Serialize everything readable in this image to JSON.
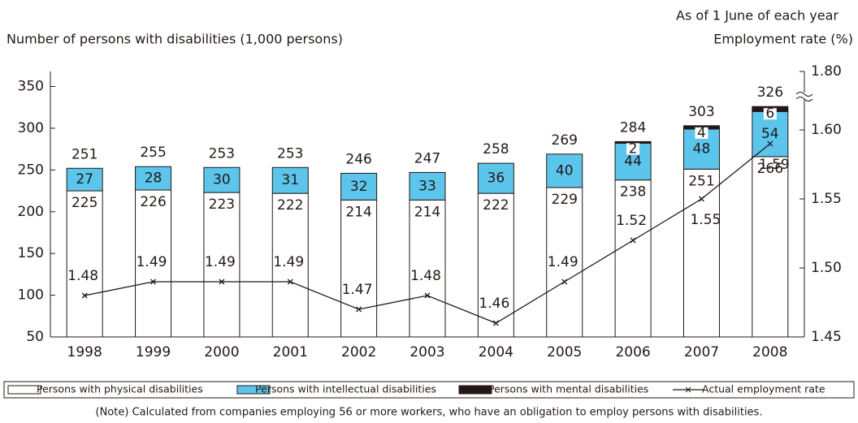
{
  "chart_data": {
    "type": "stacked_bar_line",
    "subtitle": "As of 1 June of each year",
    "ylabel": "Number of persons with disabilities (1,000 persons)",
    "y2label": "Employment rate (%)",
    "note": "(Note) Calculated from companies employing 56 or more workers, who have an obligation to employ persons with disabilities.",
    "categories": [
      "1998",
      "1999",
      "2000",
      "2001",
      "2002",
      "2003",
      "2004",
      "2005",
      "2006",
      "2007",
      "2008"
    ],
    "series": [
      {
        "name": "Persons with physical disabilities",
        "color": "#ffffff",
        "values": [
          225,
          226,
          223,
          222,
          214,
          214,
          222,
          229,
          238,
          251,
          266
        ]
      },
      {
        "name": "Persons with intellectual disabilities",
        "color": "#5bc5ec",
        "values": [
          27,
          28,
          30,
          31,
          32,
          33,
          36,
          40,
          44,
          48,
          54
        ]
      },
      {
        "name": "Persons with mental disabilities",
        "color": "#231815",
        "values": [
          null,
          null,
          null,
          null,
          null,
          null,
          null,
          null,
          2,
          4,
          6
        ]
      },
      {
        "name": "Actual employment rate",
        "color": "#231815",
        "axis": "y2",
        "values": [
          1.48,
          1.49,
          1.49,
          1.49,
          1.47,
          1.48,
          1.46,
          1.49,
          1.52,
          1.55,
          1.59
        ]
      }
    ],
    "totals": [
      251,
      255,
      253,
      253,
      246,
      247,
      258,
      269,
      284,
      303,
      326
    ],
    "ylim": [
      50,
      368
    ],
    "yticks": [
      50,
      100,
      150,
      200,
      250,
      300,
      350
    ],
    "y2lim": [
      1.45,
      1.8
    ],
    "y2ticks": [
      1.45,
      {
        "value": 1.5,
        "label": "1.50"
      },
      1.55,
      {
        "value": 1.6,
        "label": "1.60"
      },
      {
        "value": 1.8,
        "label": "1.80"
      }
    ],
    "y2_axis_break": [
      1.62,
      1.8
    ],
    "grid": false
  }
}
